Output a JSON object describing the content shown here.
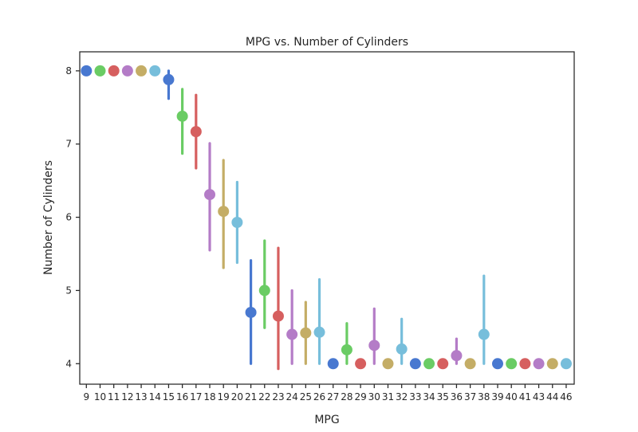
{
  "chart_data": {
    "type": "point",
    "title": "MPG vs. Number of Cylinders",
    "xlabel": "MPG",
    "ylabel": "Number of Cylinders",
    "ylim": [
      3.72,
      8.26
    ],
    "y_ticks": [
      4,
      5,
      6,
      7,
      8
    ],
    "grid": false,
    "legend": "none",
    "palette": [
      "#4878d0",
      "#6acc64",
      "#d65f5f",
      "#b47cc7",
      "#c4ad66",
      "#77bedb"
    ],
    "categories": [
      "9",
      "10",
      "11",
      "12",
      "13",
      "14",
      "15",
      "16",
      "17",
      "18",
      "19",
      "20",
      "21",
      "22",
      "23",
      "24",
      "25",
      "26",
      "27",
      "28",
      "29",
      "30",
      "31",
      "32",
      "33",
      "34",
      "35",
      "36",
      "37",
      "38",
      "39",
      "40",
      "41",
      "43",
      "44",
      "46"
    ],
    "values": [
      8,
      8,
      8,
      8,
      8,
      8,
      7.88,
      7.38,
      7.17,
      6.31,
      6.08,
      5.93,
      4.7,
      5.0,
      4.65,
      4.4,
      4.42,
      4.43,
      4.0,
      4.19,
      4.0,
      4.25,
      4.0,
      4.2,
      4.0,
      4.0,
      4.0,
      4.11,
      4.0,
      4.4,
      4.0,
      4.0,
      4.0,
      4.0,
      4.0,
      4.0
    ],
    "ci_low": [
      8,
      8,
      8,
      8,
      8,
      8,
      7.62,
      6.87,
      6.67,
      5.55,
      5.31,
      5.38,
      4.0,
      4.49,
      3.93,
      4.0,
      4.0,
      4.0,
      4.0,
      4.0,
      4.0,
      4.0,
      4.0,
      4.0,
      4.0,
      4.0,
      4.0,
      4.0,
      4.0,
      4.0,
      4.0,
      4.0,
      4.0,
      4.0,
      4.0,
      4.0
    ],
    "ci_high": [
      8,
      8,
      8,
      8,
      8,
      8,
      8.0,
      7.75,
      7.67,
      7.01,
      6.78,
      6.48,
      5.41,
      5.68,
      5.58,
      5.0,
      4.84,
      5.15,
      4.0,
      4.55,
      4.0,
      4.75,
      4.0,
      4.61,
      4.0,
      4.0,
      4.0,
      4.34,
      4.0,
      5.2,
      4.0,
      4.0,
      4.0,
      4.0,
      4.0,
      4.0
    ]
  }
}
